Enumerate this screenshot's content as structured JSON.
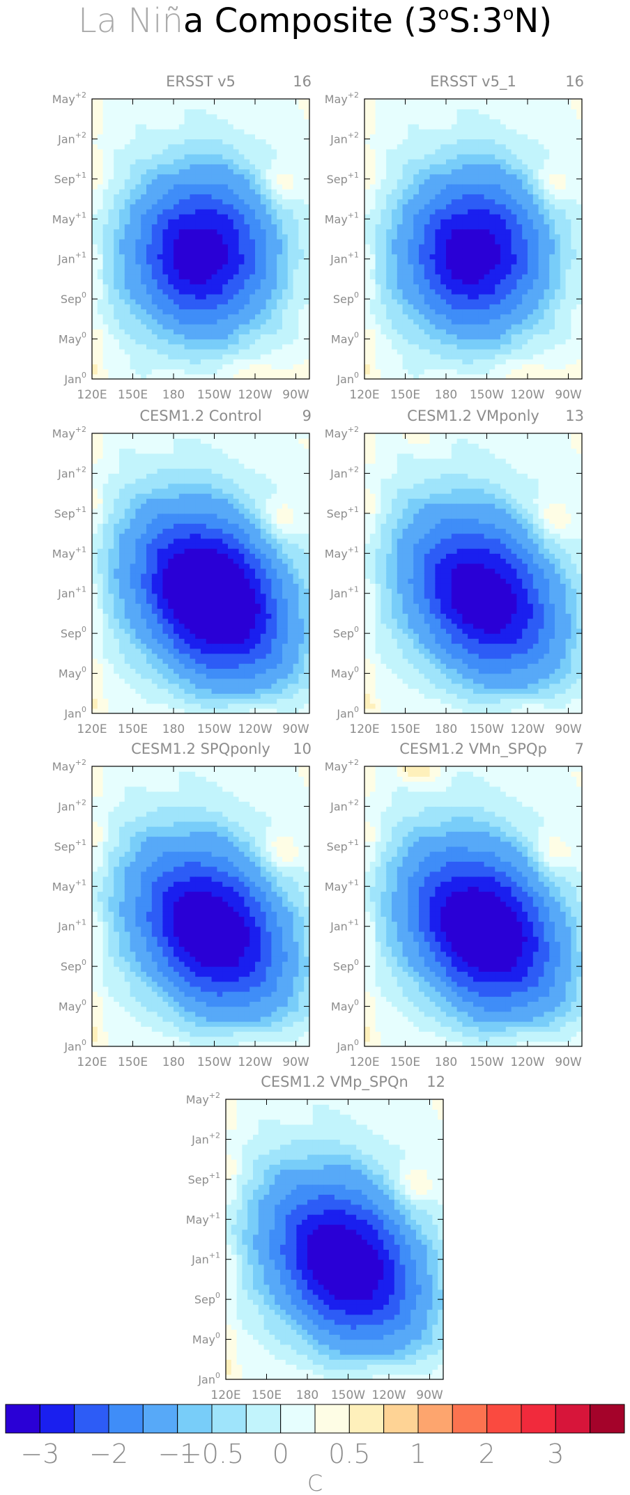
{
  "figure": {
    "title_light": "La Niñ",
    "title_dark": "a Composite (3",
    "title_sup1": "o",
    "title_mid": "S:3",
    "title_sup2": "o",
    "title_end": "N)"
  },
  "chart_data": [
    {
      "type": "heatmap",
      "title": "ERSST v5",
      "count": "16",
      "intensity": 1.0,
      "core": "ersst",
      "warmcorner": 0
    },
    {
      "type": "heatmap",
      "title": "ERSST v5_1",
      "count": "16",
      "intensity": 1.0,
      "core": "ersst",
      "warmcorner": 0
    },
    {
      "type": "heatmap",
      "title": "CESM1.2 Control",
      "count": "9",
      "intensity": 1.25,
      "core": "cesm",
      "warmcorner": 0
    },
    {
      "type": "heatmap",
      "title": "CESM1.2 VMponly",
      "count": "13",
      "intensity": 1.05,
      "core": "cesm",
      "warmcorner": 0.2
    },
    {
      "type": "heatmap",
      "title": "CESM1.2 SPQponly",
      "count": "10",
      "intensity": 1.1,
      "core": "cesm",
      "warmcorner": 0
    },
    {
      "type": "heatmap",
      "title": "CESM1.2 VMn_SPQp",
      "count": "7",
      "intensity": 1.15,
      "core": "cesm",
      "warmcorner": 0.6
    },
    {
      "type": "heatmap",
      "title": "CESM1.2 VMp_SPQn",
      "count": "12",
      "intensity": 1.1,
      "core": "cesm",
      "warmcorner": 0
    }
  ],
  "axes": {
    "x_ticks": [
      "120E",
      "150E",
      "180",
      "150W",
      "120W",
      "90W"
    ],
    "x_values": [
      120,
      150,
      180,
      210,
      240,
      270
    ],
    "x_range": [
      120,
      280
    ],
    "y_ticks": [
      {
        "base": "Jan",
        "sup": "0",
        "month": 0
      },
      {
        "base": "May",
        "sup": "0",
        "month": 4
      },
      {
        "base": "Sep",
        "sup": "0",
        "month": 8
      },
      {
        "base": "Jan",
        "sup": "+1",
        "month": 12
      },
      {
        "base": "May",
        "sup": "+1",
        "month": 16
      },
      {
        "base": "Sep",
        "sup": "+1",
        "month": 20
      },
      {
        "base": "Jan",
        "sup": "+2",
        "month": 24
      },
      {
        "base": "May",
        "sup": "+2",
        "month": 28
      }
    ],
    "y_range": [
      0,
      28
    ]
  },
  "colorbar": {
    "colors": [
      "#2a00d6",
      "#1a1fef",
      "#2d5cf6",
      "#3f8df8",
      "#57a9f8",
      "#78cdf9",
      "#9fe4fb",
      "#c2f4fc",
      "#e6fefe",
      "#fefde5",
      "#fef0bb",
      "#fed395",
      "#fda56e",
      "#fc7350",
      "#fa4a40",
      "#f12a3c",
      "#d7153a",
      "#a4032a"
    ],
    "labels": [
      "−3",
      "−2",
      "−1",
      "−0.5",
      "0",
      "0.5",
      "1",
      "2",
      "3"
    ],
    "label_boundaries": [
      1,
      3,
      5,
      6,
      8,
      10,
      12,
      14,
      16
    ],
    "unit": "C"
  }
}
